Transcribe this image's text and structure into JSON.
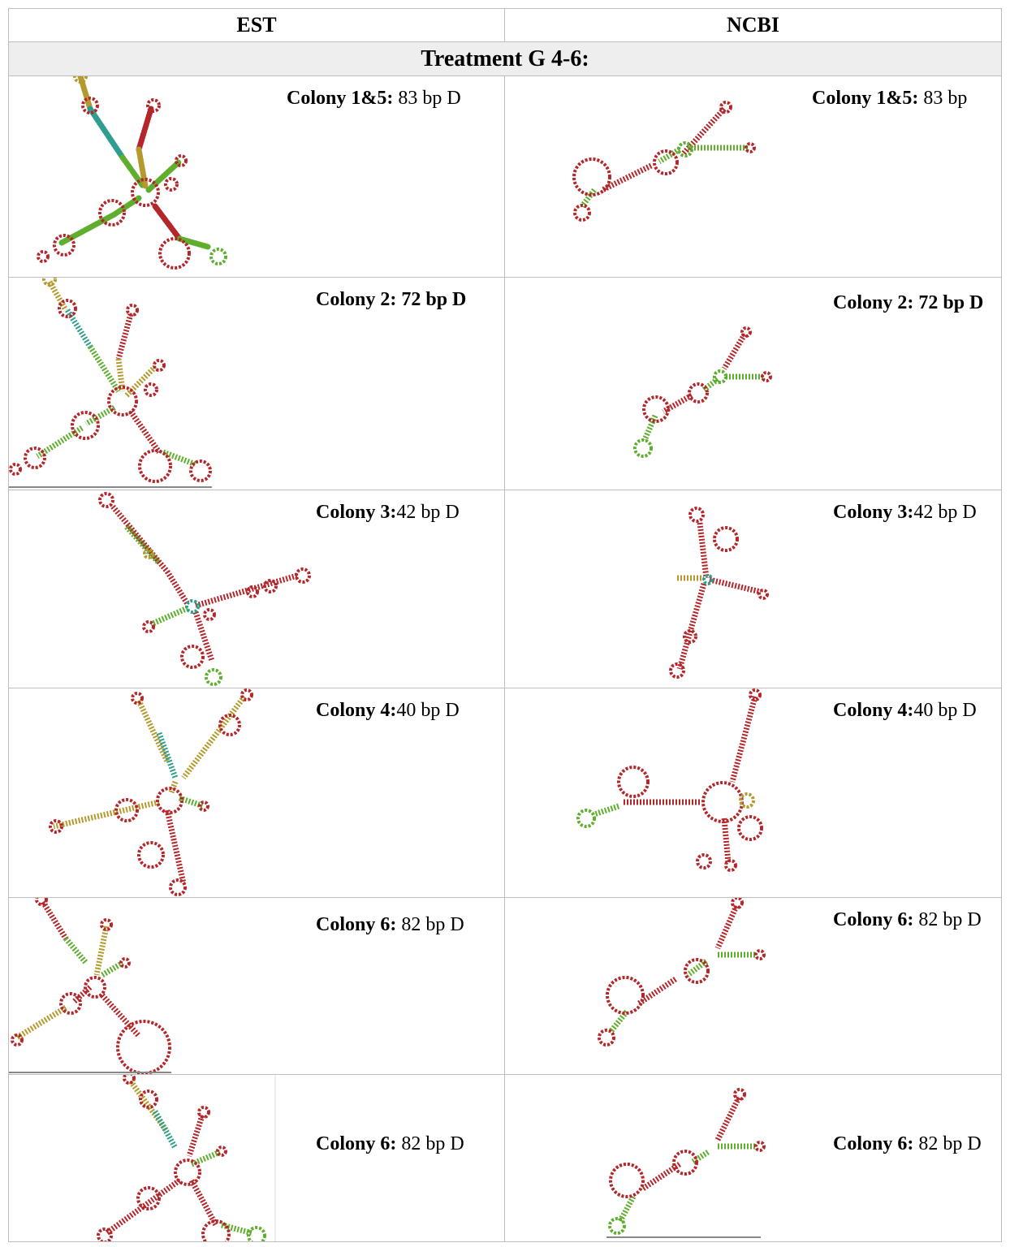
{
  "table": {
    "col_est": "EST",
    "col_ncbi": "NCBI",
    "treatment": "Treatment G 4-6:",
    "rows": [
      {
        "est": {
          "bold": "Colony 1&5:",
          "rest": " 83 bp D"
        },
        "ncbi": {
          "bold": "Colony 1&5:",
          "rest": " 83 bp"
        }
      },
      {
        "est": {
          "bold": "Colony 2: 72 bp D",
          "rest": ""
        },
        "ncbi": {
          "bold": "Colony 2: 72 bp D",
          "rest": ""
        }
      },
      {
        "est": {
          "bold": "Colony 3:",
          "rest": "42 bp D"
        },
        "ncbi": {
          "bold": "Colony 3:",
          "rest": "42 bp D"
        }
      },
      {
        "est": {
          "bold": "Colony 4:",
          "rest": "40 bp D"
        },
        "ncbi": {
          "bold": "Colony 4:",
          "rest": "40 bp D"
        }
      },
      {
        "est": {
          "bold": "Colony 6:",
          "rest": " 82 bp D"
        },
        "ncbi": {
          "bold": "Colony 6:",
          "rest": " 82 bp D"
        }
      },
      {
        "est": {
          "bold": "Colony 6:",
          "rest": " 82 bp D"
        },
        "ncbi": {
          "bold": "Colony 6:",
          "rest": " 82 bp D"
        }
      }
    ]
  },
  "colors": {
    "stem_red": "#b3262a",
    "stem_green": "#5fae2e",
    "stem_olive": "#b49a2e",
    "stem_teal": "#2f9e8f",
    "stem_brown": "#a8552a"
  }
}
